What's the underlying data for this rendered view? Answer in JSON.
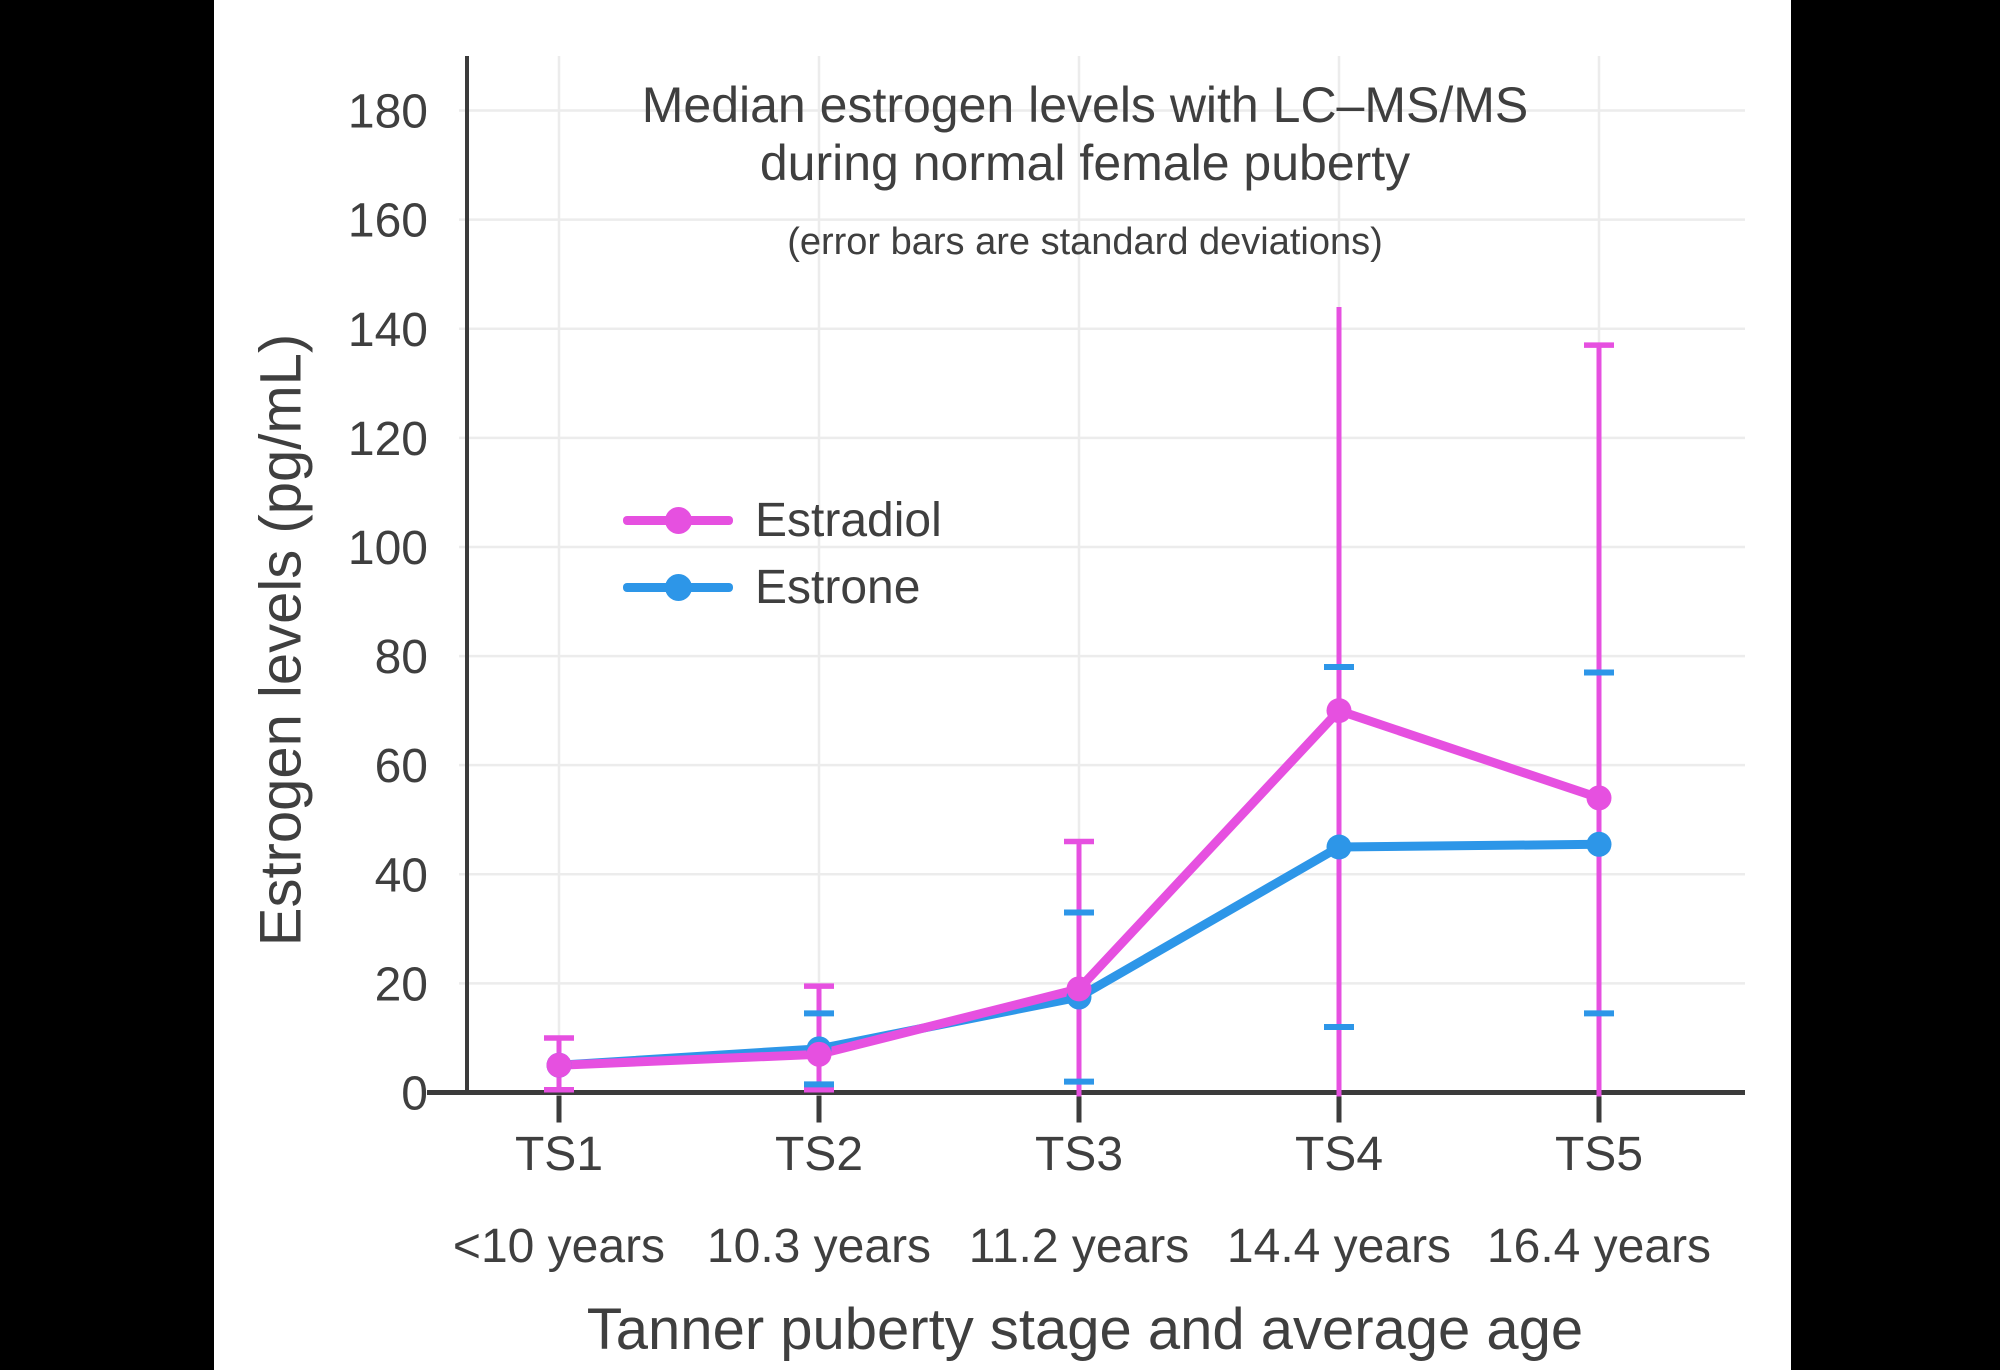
{
  "colors": {
    "background": "#000000",
    "panel": "#ffffff",
    "text": "#3f3f3f",
    "axis": "#3b3b3b",
    "grid": "#ececec",
    "estradiol": "#e650e0",
    "estrone": "#2d96e8"
  },
  "chart_data": {
    "type": "line",
    "title_line1": "Median estrogen levels with LC–MS/MS",
    "title_line2": "during normal female puberty",
    "subtitle": "(error bars are standard deviations)",
    "xlabel": "Tanner puberty stage and average age",
    "ylabel": "Estrogen levels (pg/mL)",
    "categories": [
      "TS1",
      "TS2",
      "TS3",
      "TS4",
      "TS5"
    ],
    "category_ages": [
      "<10 years",
      "10.3 years",
      "11.2 years",
      "14.4 years",
      "16.4 years"
    ],
    "yticks": [
      0,
      20,
      40,
      60,
      80,
      100,
      120,
      140,
      160,
      180
    ],
    "ylim": [
      0,
      190
    ],
    "grid": true,
    "legend": {
      "position": "inside-upper-left",
      "entries": [
        "Estradiol",
        "Estrone"
      ]
    },
    "series": [
      {
        "name": "Estradiol",
        "color": "#e650e0",
        "values": [
          5,
          7,
          19,
          70,
          54
        ],
        "err_low": [
          0.5,
          0.5,
          0,
          0,
          0
        ],
        "err_high": [
          10,
          19.5,
          46,
          144,
          137
        ],
        "cap_low": [
          true,
          true,
          false,
          false,
          false
        ],
        "cap_high": [
          true,
          true,
          true,
          false,
          true
        ]
      },
      {
        "name": "Estrone",
        "color": "#2d96e8",
        "values": [
          5,
          8,
          17.5,
          45,
          45.5
        ],
        "err_low": [
          null,
          1.5,
          2,
          12,
          14.5
        ],
        "err_high": [
          null,
          14.5,
          33,
          78,
          77
        ],
        "cap_low": [
          false,
          true,
          true,
          true,
          true
        ],
        "cap_high": [
          false,
          true,
          true,
          true,
          true
        ]
      }
    ]
  }
}
